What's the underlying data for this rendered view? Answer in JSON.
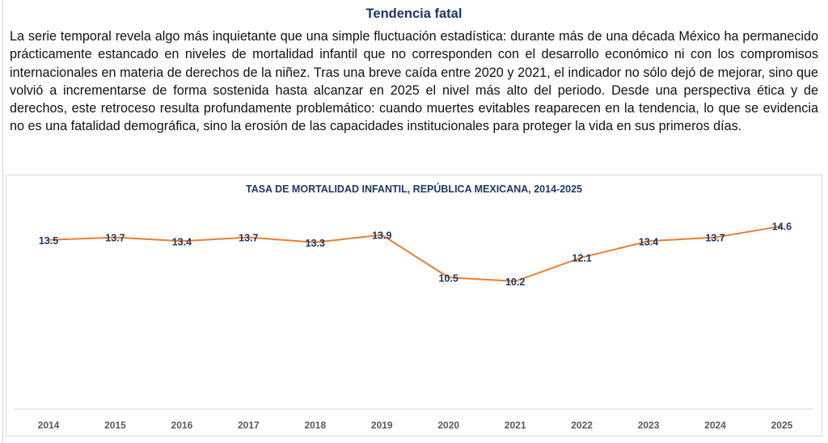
{
  "title": "Tendencia fatal",
  "paragraph": "La serie temporal revela algo más inquietante que una simple fluctuación estadística: durante más de una década México ha permanecido prácticamente estancado en niveles de mortalidad infantil que no corresponden con el desarrollo económico ni con los compromisos internacionales en materia de derechos de la niñez. Tras una breve caída entre 2020 y 2021, el indicador no sólo dejó de mejorar, sino que volvió a incrementarse de forma sostenida hasta alcanzar en 2025 el nivel más alto del periodo. Desde una perspectiva ética y de derechos, este retroceso resulta profundamente problemático: cuando muertes evitables reaparecen en la tendencia, lo que se evidencia no es una fatalidad demográfica, sino la erosión de las capacidades institucionales para proteger la vida en sus primeros días.",
  "chart_data": {
    "type": "line",
    "title": "TASA DE MORTALIDAD INFANTIL, REPÚBLICA MEXICANA, 2014-2025",
    "categories": [
      "2014",
      "2015",
      "2016",
      "2017",
      "2018",
      "2019",
      "2020",
      "2021",
      "2022",
      "2023",
      "2024",
      "2025"
    ],
    "series": [
      {
        "name": "Tasa de mortalidad infantil",
        "values": [
          13.5,
          13.7,
          13.4,
          13.7,
          13.3,
          13.9,
          10.5,
          10.2,
          12.1,
          13.4,
          13.7,
          14.6
        ]
      }
    ],
    "xlabel": "",
    "ylabel": "",
    "ylim": [
      0,
      15
    ],
    "grid": false,
    "legend": "none",
    "colors": {
      "line": "#ed7d31",
      "labels": "#1f3864",
      "ticks": "#595959"
    }
  }
}
